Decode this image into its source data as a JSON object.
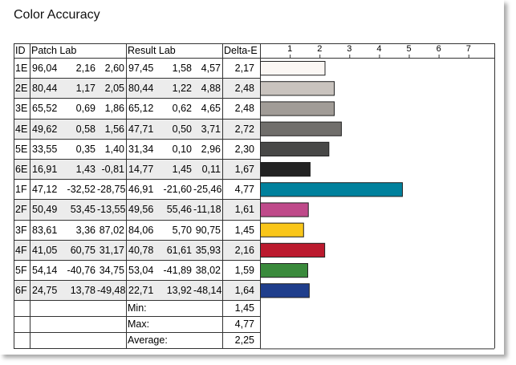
{
  "title": "Color Accuracy",
  "headers": {
    "id": "ID",
    "patch": "Patch Lab",
    "result": "Result Lab",
    "delta": "Delta-E"
  },
  "rows": [
    {
      "id": "1E",
      "patch": [
        "96,04",
        "2,16",
        "2,60"
      ],
      "result": [
        "97,45",
        "1,58",
        "4,57"
      ],
      "delta": "2,17",
      "de": 2.17,
      "color": "#fbf7f4"
    },
    {
      "id": "2E",
      "patch": [
        "80,44",
        "1,17",
        "2,05"
      ],
      "result": [
        "80,44",
        "1,22",
        "4,88"
      ],
      "delta": "2,48",
      "de": 2.48,
      "color": "#c9c3be"
    },
    {
      "id": "3E",
      "patch": [
        "65,52",
        "0,69",
        "1,86"
      ],
      "result": [
        "65,12",
        "0,62",
        "4,65"
      ],
      "delta": "2,48",
      "de": 2.48,
      "color": "#a19c97"
    },
    {
      "id": "4E",
      "patch": [
        "49,62",
        "0,58",
        "1,56"
      ],
      "result": [
        "47,71",
        "0,50",
        "3,71"
      ],
      "delta": "2,72",
      "de": 2.72,
      "color": "#706e6b"
    },
    {
      "id": "5E",
      "patch": [
        "33,55",
        "0,35",
        "1,40"
      ],
      "result": [
        "31,34",
        "0,10",
        "2,96"
      ],
      "delta": "2,30",
      "de": 2.3,
      "color": "#484847"
    },
    {
      "id": "6E",
      "patch": [
        "16,91",
        "1,43",
        "-0,81"
      ],
      "result": [
        "14,77",
        "1,45",
        "0,11"
      ],
      "delta": "1,67",
      "de": 1.67,
      "color": "#232323"
    },
    {
      "id": "1F",
      "patch": [
        "47,12",
        "-32,52",
        "-28,75"
      ],
      "result": [
        "46,91",
        "-21,60",
        "-25,46"
      ],
      "delta": "4,77",
      "de": 4.77,
      "color": "#00819d"
    },
    {
      "id": "2F",
      "patch": [
        "50,49",
        "53,45",
        "-13,55"
      ],
      "result": [
        "49,56",
        "55,46",
        "-11,18"
      ],
      "delta": "1,61",
      "de": 1.61,
      "color": "#bf4a8a"
    },
    {
      "id": "3F",
      "patch": [
        "83,61",
        "3,36",
        "87,02"
      ],
      "result": [
        "84,06",
        "5,70",
        "90,75"
      ],
      "delta": "1,45",
      "de": 1.45,
      "color": "#f9c61a"
    },
    {
      "id": "4F",
      "patch": [
        "41,05",
        "60,75",
        "31,17"
      ],
      "result": [
        "40,78",
        "61,61",
        "35,93"
      ],
      "delta": "2,16",
      "de": 2.16,
      "color": "#bb1a2e"
    },
    {
      "id": "5F",
      "patch": [
        "54,14",
        "-40,76",
        "34,75"
      ],
      "result": [
        "53,04",
        "-41,89",
        "38,02"
      ],
      "delta": "1,59",
      "de": 1.59,
      "color": "#3a8a3c"
    },
    {
      "id": "6F",
      "patch": [
        "24,75",
        "13,78",
        "-49,48"
      ],
      "result": [
        "22,71",
        "13,92",
        "-48,14"
      ],
      "delta": "1,64",
      "de": 1.64,
      "color": "#1f3e8c"
    }
  ],
  "summary": [
    {
      "label": "Min:",
      "value": "1,45"
    },
    {
      "label": "Max:",
      "value": "4,77"
    },
    {
      "label": "Average:",
      "value": "2,25"
    }
  ],
  "chart_data": {
    "type": "bar",
    "orientation": "horizontal",
    "title": "Color Accuracy",
    "categories": [
      "1E",
      "2E",
      "3E",
      "4E",
      "5E",
      "6E",
      "1F",
      "2F",
      "3F",
      "4F",
      "5F",
      "6F"
    ],
    "values": [
      2.17,
      2.48,
      2.48,
      2.72,
      2.3,
      1.67,
      4.77,
      1.61,
      1.45,
      2.16,
      1.59,
      1.64
    ],
    "xlim": [
      0,
      8
    ],
    "ticks": [
      "1",
      "2",
      "3",
      "4",
      "5",
      "6",
      "7"
    ],
    "grid": false,
    "legend": "none"
  }
}
